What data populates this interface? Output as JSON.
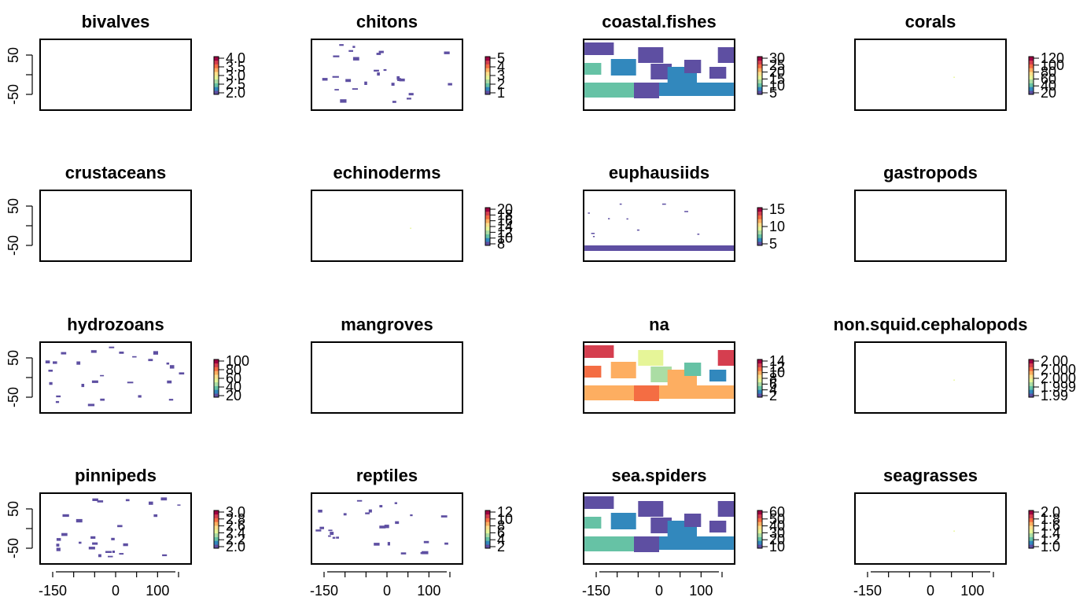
{
  "figure": {
    "x_axis_ticks": [
      "-150",
      "0",
      "100"
    ],
    "y_axis_ticks": [
      "50",
      "-50"
    ]
  },
  "palette": [
    "#5e4fa2",
    "#3288bd",
    "#66c2a5",
    "#abdda4",
    "#e6f598",
    "#fee08b",
    "#fdae61",
    "#f46d43",
    "#d53e4f",
    "#9e0142"
  ],
  "chart_data": [
    {
      "type": "heatmap",
      "title": "bivalves",
      "legend_ticks": [
        "4.0",
        "3.5",
        "3.0",
        "2.5",
        "2.0"
      ],
      "coverage": "none"
    },
    {
      "type": "heatmap",
      "title": "chitons",
      "legend_ticks": [
        "5",
        "4",
        "3",
        "2",
        "1"
      ],
      "coverage": "sparse"
    },
    {
      "type": "heatmap",
      "title": "coastal.fishes",
      "legend_ticks": [
        "30",
        "25",
        "20",
        "15",
        "10",
        "5"
      ],
      "coverage": "dense"
    },
    {
      "type": "heatmap",
      "title": "corals",
      "legend_ticks": [
        "120",
        "100",
        "80",
        "60",
        "40",
        "20"
      ],
      "coverage": "point"
    },
    {
      "type": "heatmap",
      "title": "crustaceans",
      "legend_ticks": [],
      "coverage": "none"
    },
    {
      "type": "heatmap",
      "title": "echinoderms",
      "legend_ticks": [
        "20",
        "18",
        "16",
        "14",
        "12",
        "10",
        "8"
      ],
      "coverage": "point"
    },
    {
      "type": "heatmap",
      "title": "euphausiids",
      "legend_ticks": [
        "15",
        "10",
        "5"
      ],
      "coverage": "southern-band"
    },
    {
      "type": "heatmap",
      "title": "gastropods",
      "legend_ticks": [],
      "coverage": "none"
    },
    {
      "type": "heatmap",
      "title": "hydrozoans",
      "legend_ticks": [
        "100",
        "80",
        "60",
        "40",
        "20"
      ],
      "coverage": "sparse"
    },
    {
      "type": "heatmap",
      "title": "mangroves",
      "legend_ticks": [],
      "coverage": "none"
    },
    {
      "type": "heatmap",
      "title": "na",
      "legend_ticks": [
        "14",
        "12",
        "10",
        "8",
        "6",
        "4",
        "2"
      ],
      "coverage": "dense-colored"
    },
    {
      "type": "heatmap",
      "title": "non.squid.cephalopods",
      "legend_ticks": [
        "2.00",
        "2.000",
        "2.000",
        "1.999",
        "1.99"
      ],
      "coverage": "point"
    },
    {
      "type": "heatmap",
      "title": "pinnipeds",
      "legend_ticks": [
        "3.0",
        "2.8",
        "2.6",
        "2.4",
        "2.2",
        "2.0"
      ],
      "coverage": "sparse"
    },
    {
      "type": "heatmap",
      "title": "reptiles",
      "legend_ticks": [
        "12",
        "10",
        "8",
        "6",
        "4",
        "2"
      ],
      "coverage": "sparse"
    },
    {
      "type": "heatmap",
      "title": "sea.spiders",
      "legend_ticks": [
        "60",
        "50",
        "40",
        "30",
        "20",
        "10"
      ],
      "coverage": "dense"
    },
    {
      "type": "heatmap",
      "title": "seagrasses",
      "legend_ticks": [
        "2.0",
        "1.8",
        "1.6",
        "1.4",
        "1.2",
        "1.0"
      ],
      "coverage": "point"
    }
  ]
}
